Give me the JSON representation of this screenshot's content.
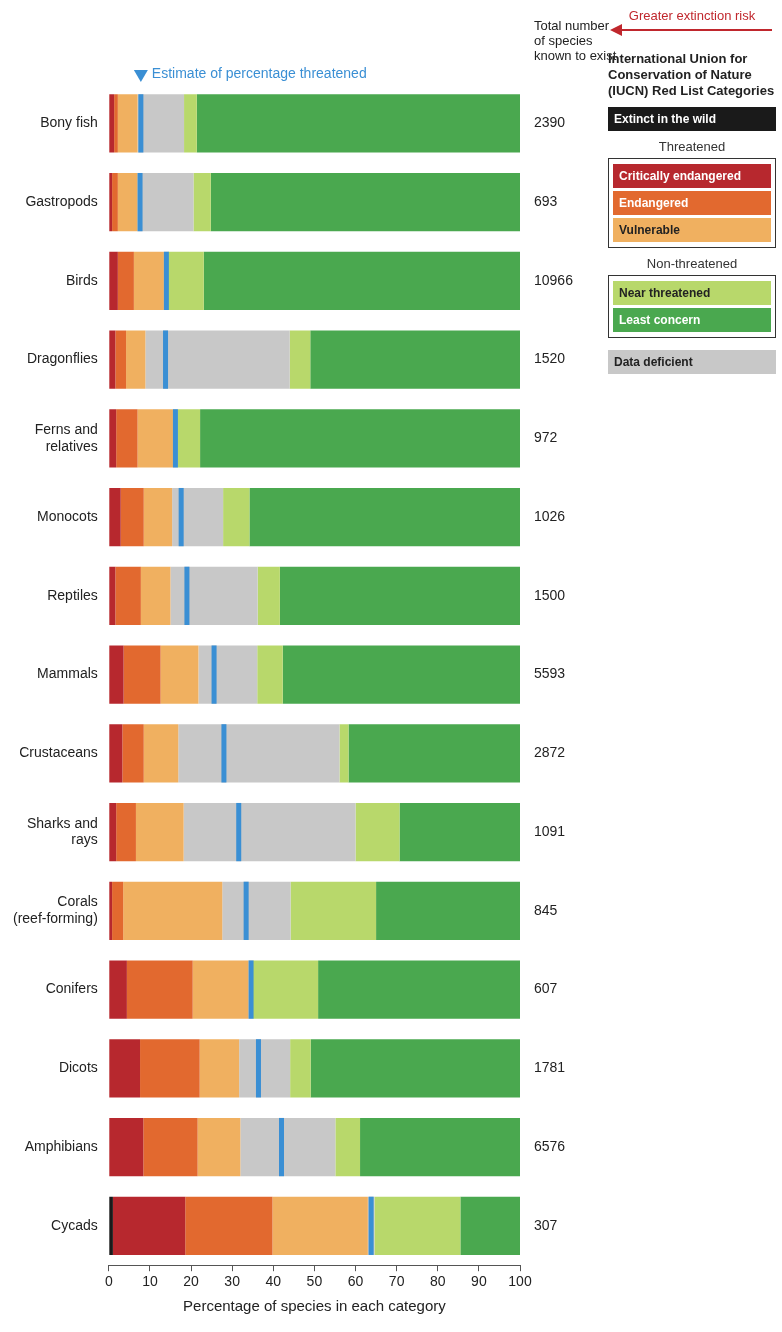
{
  "chart_data": {
    "type": "bar",
    "orientation": "horizontal",
    "stacked": true,
    "grid": false,
    "legend": "right",
    "categories": [
      "Bony fish",
      "Gastropods",
      "Birds",
      "Dragonflies",
      "Ferns and relatives",
      "Monocots",
      "Reptiles",
      "Mammals",
      "Crustaceans",
      "Sharks and rays",
      "Corals (reef-forming)",
      "Conifers",
      "Dicots",
      "Amphibians",
      "Cycads"
    ],
    "series": [
      {
        "name": "Extinct in the wild",
        "color": "#1a1a1a",
        "values": [
          0,
          0,
          0,
          0,
          0,
          0,
          0,
          0,
          0,
          0,
          0,
          0,
          0,
          0,
          1.0
        ]
      },
      {
        "name": "Critically endangered",
        "color": "#b7282e",
        "values": [
          1.3,
          0.8,
          2.2,
          1.6,
          1.8,
          2.9,
          1.6,
          3.6,
          3.3,
          1.8,
          0.8,
          4.4,
          7.6,
          8.4,
          17.6
        ]
      },
      {
        "name": "Endangered",
        "color": "#e2692f",
        "values": [
          0.9,
          1.4,
          3.9,
          2.6,
          5.2,
          5.6,
          6.2,
          9.0,
          5.2,
          4.8,
          2.7,
          16.0,
          14.5,
          13.2,
          21.2
        ]
      },
      {
        "name": "Vulnerable",
        "color": "#f0b060",
        "values": [
          4.8,
          4.8,
          7.3,
          4.7,
          8.6,
          6.9,
          7.2,
          9.2,
          8.4,
          11.6,
          24.1,
          13.6,
          9.6,
          10.4,
          23.2
        ]
      },
      {
        "name": "Data deficient",
        "color": "#c8c8c8",
        "values": [
          11.3,
          13.6,
          1.0,
          35.1,
          1.1,
          12.4,
          21.2,
          14.3,
          39.2,
          41.8,
          16.6,
          1.0,
          12.4,
          23.1,
          1.6
        ]
      },
      {
        "name": "Near threatened",
        "color": "#b8d86b",
        "values": [
          3.1,
          4.2,
          8.7,
          5.0,
          5.5,
          6.4,
          5.4,
          6.2,
          2.2,
          10.7,
          20.8,
          15.9,
          5.0,
          6.0,
          20.9
        ]
      },
      {
        "name": "Least concern",
        "color": "#4aa84f",
        "values": [
          78.6,
          75.2,
          76.9,
          51.0,
          77.8,
          65.8,
          58.4,
          57.7,
          41.7,
          29.3,
          35.0,
          49.1,
          50.9,
          38.9,
          14.5
        ]
      }
    ],
    "legend_title": "International Union for Conservation of Nature (IUCN) Red List Categories",
    "legend_groups": [
      {
        "name": "Threatened",
        "members": [
          "Critically endangered",
          "Endangered",
          "Vulnerable"
        ]
      },
      {
        "name": "Non-threatened",
        "members": [
          "Near threatened",
          "Least concern"
        ]
      }
    ],
    "risk_arrow_label": "Greater extinction risk",
    "threatened_estimate": {
      "label": "Estimate of percentage threatened",
      "color": "#3a8fd4",
      "values": [
        7.8,
        7.6,
        14.0,
        13.8,
        16.2,
        17.6,
        19.0,
        25.6,
        28.0,
        31.6,
        33.4,
        34.6,
        36.4,
        42.0,
        63.8
      ]
    },
    "totals": {
      "label": "Total number of species known to exist",
      "values": [
        2390,
        693,
        10966,
        1520,
        972,
        1026,
        1500,
        5593,
        2872,
        1091,
        845,
        607,
        1781,
        6576,
        307
      ]
    },
    "xlim": [
      0,
      100
    ],
    "xticks": [
      0,
      10,
      20,
      30,
      40,
      50,
      60,
      70,
      80,
      90,
      100
    ],
    "xlabel": "Percentage of species in each category"
  }
}
